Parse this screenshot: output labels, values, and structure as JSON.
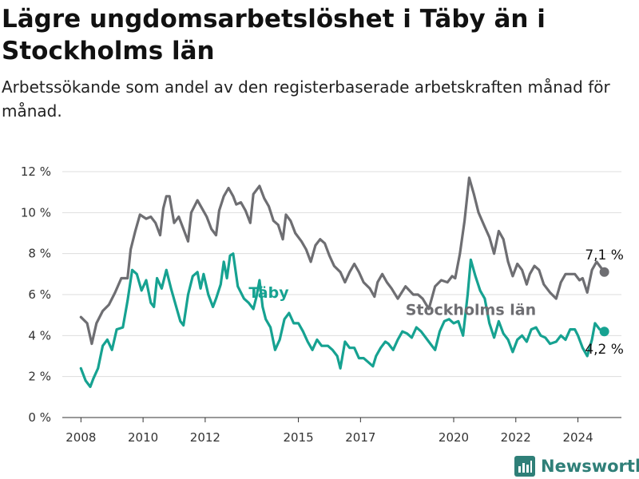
{
  "header": {
    "title": "Lägre ungdomsarbetslöshet i Täby än i Stockholms län",
    "subtitle": "Arbetssökande som andel av den registerbaserade arbetskraften månad för månad."
  },
  "logo": {
    "icon": "bar-chart-icon",
    "text": "Newsworthy"
  },
  "colors": {
    "taby": "#16a291",
    "stockholm": "#6e6e72",
    "grid": "#dddddd"
  },
  "chart_data": {
    "type": "line",
    "ylim": [
      0,
      12
    ],
    "xlim": [
      2007.4,
      2025.4
    ],
    "grid": true,
    "y_ticks": [
      0,
      2,
      4,
      6,
      8,
      10,
      12
    ],
    "y_tick_labels": [
      "0 %",
      "2 %",
      "4 %",
      "6 %",
      "8 %",
      "10 %",
      "12 %"
    ],
    "x_ticks": [
      2008,
      2010,
      2012,
      2015,
      2017,
      2020,
      2022,
      2024
    ],
    "x_tick_labels": [
      "2008",
      "2010",
      "2012",
      "2015",
      "2017",
      "2020",
      "2022",
      "2024"
    ],
    "series": [
      {
        "name": "Stockholms län",
        "color": "#6e6e72",
        "end_label": "7,1 %",
        "points": [
          [
            2008.0,
            4.9
          ],
          [
            2008.2,
            4.6
          ],
          [
            2008.35,
            3.6
          ],
          [
            2008.5,
            4.6
          ],
          [
            2008.7,
            5.2
          ],
          [
            2008.9,
            5.5
          ],
          [
            2009.1,
            6.1
          ],
          [
            2009.3,
            6.8
          ],
          [
            2009.5,
            6.8
          ],
          [
            2009.6,
            8.2
          ],
          [
            2009.75,
            9.1
          ],
          [
            2009.9,
            9.9
          ],
          [
            2010.1,
            9.7
          ],
          [
            2010.25,
            9.8
          ],
          [
            2010.4,
            9.5
          ],
          [
            2010.55,
            8.9
          ],
          [
            2010.65,
            10.2
          ],
          [
            2010.75,
            10.8
          ],
          [
            2010.85,
            10.8
          ],
          [
            2011.0,
            9.5
          ],
          [
            2011.15,
            9.8
          ],
          [
            2011.3,
            9.2
          ],
          [
            2011.45,
            8.6
          ],
          [
            2011.55,
            10.0
          ],
          [
            2011.75,
            10.6
          ],
          [
            2011.9,
            10.2
          ],
          [
            2012.05,
            9.8
          ],
          [
            2012.2,
            9.2
          ],
          [
            2012.35,
            8.9
          ],
          [
            2012.45,
            10.1
          ],
          [
            2012.6,
            10.8
          ],
          [
            2012.75,
            11.2
          ],
          [
            2012.9,
            10.8
          ],
          [
            2013.0,
            10.4
          ],
          [
            2013.15,
            10.5
          ],
          [
            2013.3,
            10.1
          ],
          [
            2013.45,
            9.5
          ],
          [
            2013.55,
            10.9
          ],
          [
            2013.75,
            11.3
          ],
          [
            2013.9,
            10.7
          ],
          [
            2014.05,
            10.3
          ],
          [
            2014.2,
            9.6
          ],
          [
            2014.35,
            9.4
          ],
          [
            2014.5,
            8.7
          ],
          [
            2014.6,
            9.9
          ],
          [
            2014.75,
            9.6
          ],
          [
            2014.9,
            9.0
          ],
          [
            2015.1,
            8.6
          ],
          [
            2015.25,
            8.2
          ],
          [
            2015.4,
            7.6
          ],
          [
            2015.55,
            8.4
          ],
          [
            2015.7,
            8.7
          ],
          [
            2015.85,
            8.5
          ],
          [
            2016.0,
            7.9
          ],
          [
            2016.15,
            7.4
          ],
          [
            2016.35,
            7.1
          ],
          [
            2016.5,
            6.6
          ],
          [
            2016.65,
            7.1
          ],
          [
            2016.8,
            7.5
          ],
          [
            2016.95,
            7.1
          ],
          [
            2017.1,
            6.6
          ],
          [
            2017.3,
            6.3
          ],
          [
            2017.45,
            5.9
          ],
          [
            2017.55,
            6.6
          ],
          [
            2017.7,
            7.0
          ],
          [
            2017.85,
            6.6
          ],
          [
            2018.0,
            6.3
          ],
          [
            2018.2,
            5.8
          ],
          [
            2018.45,
            6.4
          ],
          [
            2018.7,
            6.0
          ],
          [
            2018.85,
            6.0
          ],
          [
            2019.0,
            5.8
          ],
          [
            2019.2,
            5.3
          ],
          [
            2019.4,
            6.4
          ],
          [
            2019.6,
            6.7
          ],
          [
            2019.8,
            6.6
          ],
          [
            2019.95,
            6.9
          ],
          [
            2020.05,
            6.8
          ],
          [
            2020.2,
            8.0
          ],
          [
            2020.35,
            9.6
          ],
          [
            2020.5,
            11.7
          ],
          [
            2020.65,
            10.9
          ],
          [
            2020.8,
            10.0
          ],
          [
            2021.0,
            9.3
          ],
          [
            2021.15,
            8.8
          ],
          [
            2021.3,
            8.0
          ],
          [
            2021.45,
            9.1
          ],
          [
            2021.6,
            8.7
          ],
          [
            2021.75,
            7.6
          ],
          [
            2021.9,
            6.9
          ],
          [
            2022.05,
            7.5
          ],
          [
            2022.2,
            7.2
          ],
          [
            2022.35,
            6.5
          ],
          [
            2022.45,
            7.0
          ],
          [
            2022.6,
            7.4
          ],
          [
            2022.75,
            7.2
          ],
          [
            2022.9,
            6.5
          ],
          [
            2023.1,
            6.1
          ],
          [
            2023.3,
            5.8
          ],
          [
            2023.45,
            6.6
          ],
          [
            2023.6,
            7.0
          ],
          [
            2023.75,
            7.0
          ],
          [
            2023.9,
            7.0
          ],
          [
            2024.05,
            6.7
          ],
          [
            2024.15,
            6.8
          ],
          [
            2024.3,
            6.1
          ],
          [
            2024.45,
            7.2
          ],
          [
            2024.6,
            7.6
          ],
          [
            2024.75,
            7.3
          ],
          [
            2024.85,
            7.1
          ]
        ]
      },
      {
        "name": "Täby",
        "color": "#16a291",
        "end_label": "4,2 %",
        "points": [
          [
            2008.0,
            2.4
          ],
          [
            2008.15,
            1.8
          ],
          [
            2008.3,
            1.5
          ],
          [
            2008.4,
            1.9
          ],
          [
            2008.55,
            2.4
          ],
          [
            2008.7,
            3.5
          ],
          [
            2008.85,
            3.8
          ],
          [
            2009.0,
            3.3
          ],
          [
            2009.15,
            4.3
          ],
          [
            2009.35,
            4.4
          ],
          [
            2009.5,
            5.7
          ],
          [
            2009.65,
            7.2
          ],
          [
            2009.8,
            7.0
          ],
          [
            2009.95,
            6.2
          ],
          [
            2010.1,
            6.7
          ],
          [
            2010.25,
            5.6
          ],
          [
            2010.35,
            5.4
          ],
          [
            2010.45,
            6.8
          ],
          [
            2010.6,
            6.3
          ],
          [
            2010.75,
            7.2
          ],
          [
            2010.9,
            6.3
          ],
          [
            2011.05,
            5.5
          ],
          [
            2011.2,
            4.7
          ],
          [
            2011.3,
            4.5
          ],
          [
            2011.45,
            6.0
          ],
          [
            2011.6,
            6.9
          ],
          [
            2011.75,
            7.1
          ],
          [
            2011.85,
            6.3
          ],
          [
            2011.95,
            7.0
          ],
          [
            2012.1,
            6.0
          ],
          [
            2012.25,
            5.4
          ],
          [
            2012.35,
            5.8
          ],
          [
            2012.5,
            6.5
          ],
          [
            2012.6,
            7.6
          ],
          [
            2012.7,
            6.8
          ],
          [
            2012.8,
            7.9
          ],
          [
            2012.9,
            8.0
          ],
          [
            2013.05,
            6.4
          ],
          [
            2013.25,
            5.8
          ],
          [
            2013.4,
            5.6
          ],
          [
            2013.55,
            5.3
          ],
          [
            2013.65,
            5.9
          ],
          [
            2013.75,
            6.7
          ],
          [
            2013.85,
            5.4
          ],
          [
            2013.95,
            4.8
          ],
          [
            2014.1,
            4.4
          ],
          [
            2014.25,
            3.3
          ],
          [
            2014.4,
            3.8
          ],
          [
            2014.55,
            4.8
          ],
          [
            2014.7,
            5.1
          ],
          [
            2014.85,
            4.6
          ],
          [
            2015.0,
            4.6
          ],
          [
            2015.15,
            4.2
          ],
          [
            2015.3,
            3.7
          ],
          [
            2015.45,
            3.3
          ],
          [
            2015.6,
            3.8
          ],
          [
            2015.75,
            3.5
          ],
          [
            2015.95,
            3.5
          ],
          [
            2016.1,
            3.3
          ],
          [
            2016.25,
            3.0
          ],
          [
            2016.35,
            2.4
          ],
          [
            2016.5,
            3.7
          ],
          [
            2016.65,
            3.4
          ],
          [
            2016.8,
            3.4
          ],
          [
            2016.95,
            2.9
          ],
          [
            2017.1,
            2.9
          ],
          [
            2017.25,
            2.7
          ],
          [
            2017.4,
            2.5
          ],
          [
            2017.5,
            3.0
          ],
          [
            2017.65,
            3.4
          ],
          [
            2017.8,
            3.7
          ],
          [
            2017.9,
            3.6
          ],
          [
            2018.05,
            3.3
          ],
          [
            2018.2,
            3.8
          ],
          [
            2018.35,
            4.2
          ],
          [
            2018.5,
            4.1
          ],
          [
            2018.65,
            3.9
          ],
          [
            2018.8,
            4.4
          ],
          [
            2018.95,
            4.2
          ],
          [
            2019.1,
            3.9
          ],
          [
            2019.25,
            3.6
          ],
          [
            2019.4,
            3.3
          ],
          [
            2019.55,
            4.2
          ],
          [
            2019.7,
            4.7
          ],
          [
            2019.85,
            4.8
          ],
          [
            2020.0,
            4.6
          ],
          [
            2020.15,
            4.7
          ],
          [
            2020.3,
            4.0
          ],
          [
            2020.45,
            6.0
          ],
          [
            2020.55,
            7.7
          ],
          [
            2020.7,
            6.9
          ],
          [
            2020.85,
            6.2
          ],
          [
            2021.0,
            5.8
          ],
          [
            2021.15,
            4.6
          ],
          [
            2021.3,
            3.9
          ],
          [
            2021.45,
            4.7
          ],
          [
            2021.6,
            4.1
          ],
          [
            2021.75,
            3.8
          ],
          [
            2021.9,
            3.2
          ],
          [
            2022.05,
            3.8
          ],
          [
            2022.2,
            4.0
          ],
          [
            2022.35,
            3.7
          ],
          [
            2022.5,
            4.3
          ],
          [
            2022.65,
            4.4
          ],
          [
            2022.8,
            4.0
          ],
          [
            2022.95,
            3.9
          ],
          [
            2023.1,
            3.6
          ],
          [
            2023.3,
            3.7
          ],
          [
            2023.45,
            4.0
          ],
          [
            2023.6,
            3.8
          ],
          [
            2023.75,
            4.3
          ],
          [
            2023.9,
            4.3
          ],
          [
            2024.0,
            4.0
          ],
          [
            2024.15,
            3.4
          ],
          [
            2024.3,
            3.0
          ],
          [
            2024.45,
            3.8
          ],
          [
            2024.55,
            4.6
          ],
          [
            2024.7,
            4.3
          ],
          [
            2024.85,
            4.2
          ]
        ]
      }
    ],
    "inline_labels": [
      {
        "series": "Täby",
        "text": "Täby",
        "x": 2013.4,
        "y": 5.85
      },
      {
        "series": "Stockholms län",
        "text": "Stockholms län",
        "x": 2018.45,
        "y": 5.0
      }
    ]
  }
}
